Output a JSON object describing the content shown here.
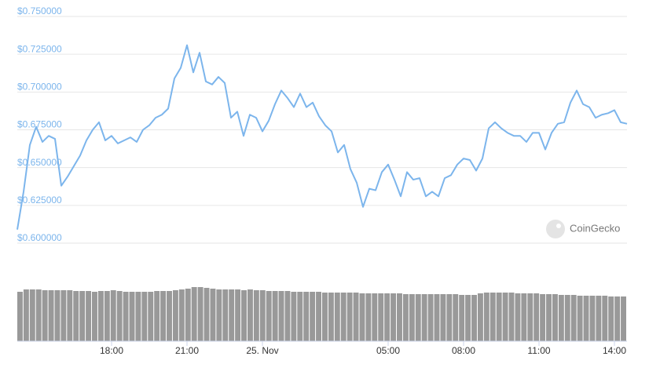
{
  "chart_data": {
    "type": "line",
    "x": [
      14.25,
      14.5,
      14.75,
      15,
      15.25,
      15.5,
      15.75,
      16,
      16.25,
      16.5,
      16.75,
      17,
      17.25,
      17.5,
      17.75,
      18,
      18.25,
      18.5,
      18.75,
      19,
      19.25,
      19.5,
      19.75,
      20,
      20.25,
      20.5,
      20.75,
      21,
      21.25,
      21.5,
      21.75,
      22,
      22.25,
      22.5,
      22.75,
      23,
      23.25,
      23.5,
      23.75,
      24,
      24.25,
      24.5,
      24.75,
      25,
      25.25,
      25.5,
      25.75,
      26,
      26.25,
      26.5,
      26.75,
      27,
      27.25,
      27.5,
      27.75,
      28,
      28.25,
      28.5,
      28.75,
      29,
      29.25,
      29.5,
      29.75,
      30,
      30.25,
      30.5,
      30.75,
      31,
      31.25,
      31.5,
      31.75,
      32,
      32.25,
      32.5,
      32.75,
      33,
      33.25,
      33.5,
      33.75,
      34,
      34.25,
      34.5,
      34.75,
      35,
      35.25,
      35.5,
      35.75,
      36,
      36.25,
      36.5,
      36.75,
      37,
      37.25,
      37.5,
      37.75,
      38,
      38.25,
      38.5
    ],
    "series": [
      {
        "color": "#7cb5ec",
        "values": [
          0.609,
          0.634,
          0.665,
          0.677,
          0.667,
          0.671,
          0.669,
          0.638,
          0.644,
          0.651,
          0.658,
          0.668,
          0.675,
          0.68,
          0.668,
          0.671,
          0.666,
          0.668,
          0.67,
          0.667,
          0.675,
          0.678,
          0.683,
          0.685,
          0.689,
          0.709,
          0.716,
          0.731,
          0.713,
          0.726,
          0.707,
          0.705,
          0.71,
          0.706,
          0.683,
          0.687,
          0.671,
          0.685,
          0.683,
          0.674,
          0.681,
          0.692,
          0.701,
          0.696,
          0.69,
          0.699,
          0.69,
          0.693,
          0.684,
          0.678,
          0.674,
          0.66,
          0.665,
          0.649,
          0.64,
          0.624,
          0.636,
          0.635,
          0.647,
          0.652,
          0.642,
          0.631,
          0.647,
          0.642,
          0.643,
          0.631,
          0.634,
          0.631,
          0.643,
          0.645,
          0.652,
          0.656,
          0.655,
          0.648,
          0.656,
          0.676,
          0.68,
          0.676,
          0.673,
          0.671,
          0.671,
          0.667,
          0.673,
          0.673,
          0.662,
          0.673,
          0.679,
          0.68,
          0.693,
          0.701,
          0.692,
          0.69,
          0.683,
          0.685,
          0.686,
          0.688,
          0.68,
          0.679
        ]
      }
    ],
    "volume": {
      "color": "#999999",
      "values": [
        63,
        66,
        66,
        66,
        65,
        65,
        65,
        65,
        65,
        64,
        64,
        64,
        63,
        64,
        64,
        65,
        64,
        63,
        63,
        63,
        63,
        63,
        64,
        64,
        64,
        65,
        66,
        67,
        69,
        69,
        68,
        67,
        66,
        66,
        66,
        66,
        65,
        66,
        65,
        65,
        64,
        64,
        64,
        64,
        63,
        63,
        63,
        63,
        63,
        62,
        62,
        62,
        62,
        62,
        62,
        61,
        61,
        61,
        61,
        61,
        61,
        61,
        60,
        60,
        60,
        60,
        60,
        60,
        60,
        60,
        60,
        59,
        59,
        59,
        61,
        62,
        62,
        62,
        62,
        62,
        61,
        61,
        61,
        61,
        60,
        60,
        60,
        59,
        59,
        59,
        58,
        58,
        58,
        58,
        58,
        57,
        57,
        57
      ]
    },
    "ylim": [
      0.6,
      0.75
    ],
    "yticks": [
      {
        "value": 0.6,
        "label": "$0.600000"
      },
      {
        "value": 0.625,
        "label": "$0.625000"
      },
      {
        "value": 0.65,
        "label": "$0.650000"
      },
      {
        "value": 0.675,
        "label": "$0.675000"
      },
      {
        "value": 0.7,
        "label": "$0.700000"
      },
      {
        "value": 0.725,
        "label": "$0.725000"
      },
      {
        "value": 0.75,
        "label": "$0.750000"
      }
    ],
    "xlim": [
      14.25,
      38.5
    ],
    "xticks": [
      {
        "value": 18,
        "label": "18:00"
      },
      {
        "value": 21,
        "label": "21:00"
      },
      {
        "value": 24,
        "label": "25. Nov"
      },
      {
        "value": 29,
        "label": "05:00"
      },
      {
        "value": 32,
        "label": "08:00"
      },
      {
        "value": 35,
        "label": "11:00"
      },
      {
        "value": 38,
        "label": "14:00"
      }
    ],
    "grid": true,
    "watermark": "CoinGecko"
  }
}
